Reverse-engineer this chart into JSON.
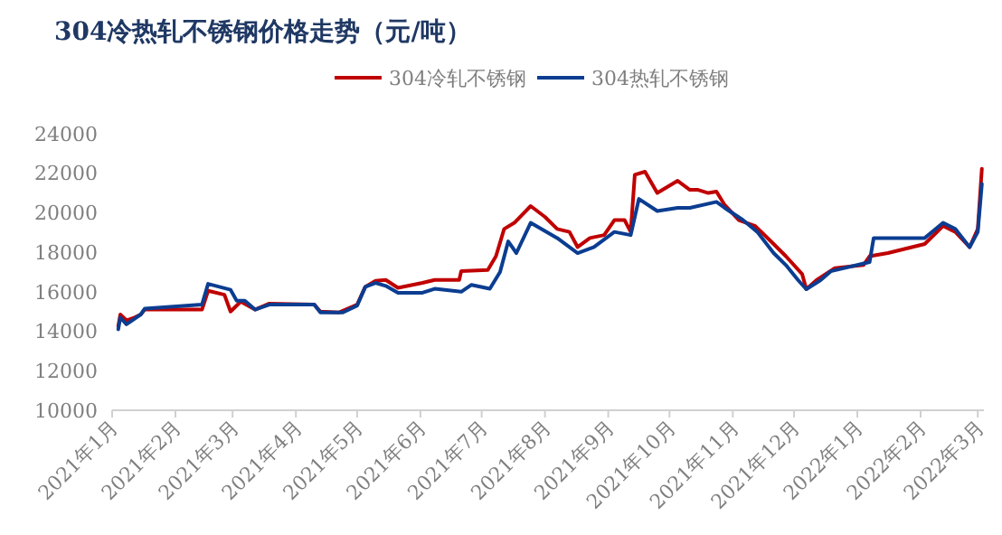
{
  "chart_data": {
    "type": "line",
    "title": "304冷热轧不锈钢价格走势（元/吨）",
    "xlim": [
      "2021-01-01",
      "2022-03-04"
    ],
    "xticks": [
      {
        "value": "2021-01-01",
        "label": "2021年1月"
      },
      {
        "value": "2021-02-01",
        "label": "2021年2月"
      },
      {
        "value": "2021-03-01",
        "label": "2021年3月"
      },
      {
        "value": "2021-04-01",
        "label": "2021年4月"
      },
      {
        "value": "2021-05-01",
        "label": "2021年5月"
      },
      {
        "value": "2021-06-01",
        "label": "2021年6月"
      },
      {
        "value": "2021-07-01",
        "label": "2021年7月"
      },
      {
        "value": "2021-08-01",
        "label": "2021年8月"
      },
      {
        "value": "2021-09-01",
        "label": "2021年9月"
      },
      {
        "value": "2021-10-01",
        "label": "2021年10月"
      },
      {
        "value": "2021-11-01",
        "label": "2021年11月"
      },
      {
        "value": "2021-12-01",
        "label": "2021年12月"
      },
      {
        "value": "2022-01-01",
        "label": "2022年1月"
      },
      {
        "value": "2022-02-01",
        "label": "2022年2月"
      },
      {
        "value": "2022-03-01",
        "label": "2022年3月"
      }
    ],
    "ylim": [
      10000,
      24000
    ],
    "yticks": [
      10000,
      12000,
      14000,
      16000,
      18000,
      20000,
      22000,
      24000
    ],
    "grid": false,
    "legend": "top",
    "marker": "none",
    "line_style": "solid",
    "series": [
      {
        "name": "304冷轧不锈钢",
        "color": "#c00000",
        "x": [
          "2021-01-04",
          "2021-01-05",
          "2021-01-08",
          "2021-01-12",
          "2021-01-15",
          "2021-01-17",
          "2021-02-14",
          "2021-02-17",
          "2021-02-25",
          "2021-02-28",
          "2021-03-05",
          "2021-03-12",
          "2021-03-19",
          "2021-04-10",
          "2021-04-13",
          "2021-04-22",
          "2021-05-01",
          "2021-05-05",
          "2021-05-10",
          "2021-05-15",
          "2021-05-21",
          "2021-06-02",
          "2021-06-08",
          "2021-06-20",
          "2021-06-21",
          "2021-07-04",
          "2021-07-08",
          "2021-07-12",
          "2021-07-17",
          "2021-07-25",
          "2021-08-01",
          "2021-08-07",
          "2021-08-13",
          "2021-08-17",
          "2021-08-23",
          "2021-08-30",
          "2021-09-04",
          "2021-09-09",
          "2021-09-12",
          "2021-09-14",
          "2021-09-19",
          "2021-09-25",
          "2021-10-05",
          "2021-10-11",
          "2021-10-15",
          "2021-10-20",
          "2021-10-24",
          "2021-10-28",
          "2021-11-04",
          "2021-11-12",
          "2021-11-21",
          "2021-11-27",
          "2021-12-05",
          "2021-12-07",
          "2021-12-12",
          "2021-12-21",
          "2022-01-04",
          "2022-01-07",
          "2022-01-16",
          "2022-02-03",
          "2022-02-12",
          "2022-02-18",
          "2022-02-25",
          "2022-03-01",
          "2022-03-03"
        ],
        "values": [
          14250,
          14850,
          14550,
          14700,
          14850,
          15100,
          15100,
          16050,
          15850,
          15000,
          15500,
          15100,
          15400,
          15350,
          15000,
          14950,
          15350,
          16250,
          16550,
          16600,
          16200,
          16450,
          16600,
          16600,
          17050,
          17100,
          17800,
          19180,
          19490,
          20340,
          19790,
          19180,
          19030,
          18260,
          18720,
          18870,
          19630,
          19630,
          19030,
          21920,
          22080,
          21000,
          21620,
          21160,
          21160,
          21000,
          21070,
          20400,
          19630,
          19330,
          18420,
          17800,
          16890,
          16130,
          16590,
          17200,
          17350,
          17800,
          17960,
          18420,
          19330,
          19030,
          18260,
          19180,
          22230
        ]
      },
      {
        "name": "304热轧不锈钢",
        "color": "#0b3d91",
        "x": [
          "2021-01-04",
          "2021-01-05",
          "2021-01-08",
          "2021-01-15",
          "2021-01-17",
          "2021-02-14",
          "2021-02-17",
          "2021-02-28",
          "2021-03-03",
          "2021-03-07",
          "2021-03-12",
          "2021-03-19",
          "2021-04-10",
          "2021-04-13",
          "2021-04-24",
          "2021-05-01",
          "2021-05-05",
          "2021-05-10",
          "2021-05-15",
          "2021-05-21",
          "2021-06-02",
          "2021-06-08",
          "2021-06-21",
          "2021-06-26",
          "2021-07-05",
          "2021-07-10",
          "2021-07-14",
          "2021-07-18",
          "2021-07-25",
          "2021-08-07",
          "2021-08-17",
          "2021-08-25",
          "2021-09-04",
          "2021-09-12",
          "2021-09-16",
          "2021-09-25",
          "2021-10-05",
          "2021-10-11",
          "2021-10-24",
          "2021-10-28",
          "2021-11-06",
          "2021-11-13",
          "2021-11-21",
          "2021-11-27",
          "2021-12-03",
          "2021-12-07",
          "2021-12-14",
          "2021-12-19",
          "2022-01-07",
          "2022-01-09",
          "2022-02-03",
          "2022-02-12",
          "2022-02-18",
          "2022-02-25",
          "2022-03-01",
          "2022-03-03"
        ],
        "values": [
          14100,
          14700,
          14350,
          14850,
          15150,
          15350,
          16400,
          16100,
          15550,
          15550,
          15100,
          15350,
          15350,
          14950,
          14950,
          15300,
          16250,
          16450,
          16300,
          15950,
          15950,
          16150,
          16000,
          16350,
          16150,
          17000,
          18550,
          17960,
          19490,
          18720,
          17960,
          18260,
          19030,
          18870,
          20700,
          20090,
          20250,
          20250,
          20550,
          20250,
          19630,
          19030,
          17960,
          17350,
          16590,
          16130,
          16590,
          17040,
          17500,
          18720,
          18720,
          19490,
          19180,
          18260,
          19030,
          21460
        ]
      }
    ]
  }
}
